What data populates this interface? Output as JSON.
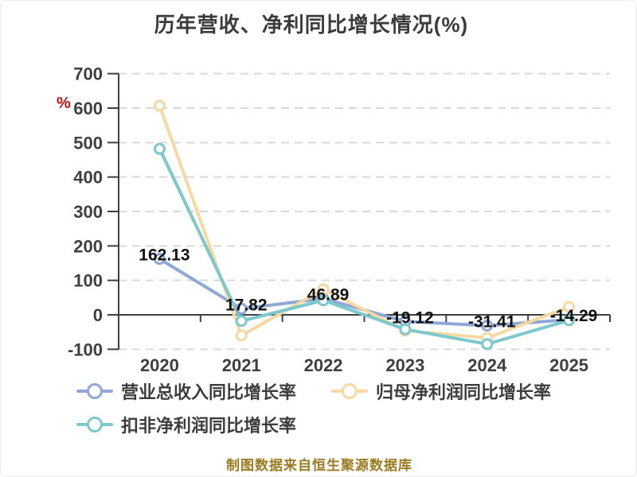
{
  "title": "历年营收、净利同比增长情况(%)",
  "unit_label": "%",
  "footer": "制图数据来自恒生聚源数据库",
  "colors": {
    "title_text": "#3b3b3b",
    "axis_text": "#3f3f3f",
    "axis_line": "#3f3f3f",
    "gridline": "#d9d9d9",
    "data_label_text": "#111111",
    "unit_label_red": "#c41212",
    "footer_text": "#9a7b1e",
    "series_revenue_blue": "#8ea8d5",
    "series_netprofit_orange": "#f6d8a1",
    "series_deducted_teal": "#7bc9cc"
  },
  "chart_data": {
    "type": "line",
    "title": "历年营收、净利同比增长情况(%)",
    "categories": [
      "2020",
      "2021",
      "2022",
      "2023",
      "2024",
      "2025"
    ],
    "series": [
      {
        "name": "营业总收入同比增长率",
        "color": "#8ea8d5",
        "values": [
          162.13,
          17.82,
          46.89,
          -19.12,
          -31.41,
          -14.29
        ],
        "labeled": true
      },
      {
        "name": "归母净利润同比增长率",
        "color": "#f6d8a1",
        "values": [
          607,
          -60,
          74,
          -46,
          -67,
          23
        ],
        "labeled": false
      },
      {
        "name": "扣非净利润同比增长率",
        "color": "#7bc9cc",
        "values": [
          482,
          -18,
          42,
          -42,
          -85,
          -16
        ],
        "labeled": false
      }
    ],
    "data_labels": [
      "162.13",
      "17.82",
      "46.89",
      "-19.12",
      "-31.41",
      "-14.29"
    ],
    "ylabel": "%",
    "ylim": [
      -100,
      700
    ],
    "yticks": [
      700,
      600,
      500,
      400,
      300,
      200,
      100,
      0,
      -100
    ],
    "grid": "horizontal-dashed",
    "legend_position": "bottom-left-two-rows",
    "marker": "open-circle"
  }
}
